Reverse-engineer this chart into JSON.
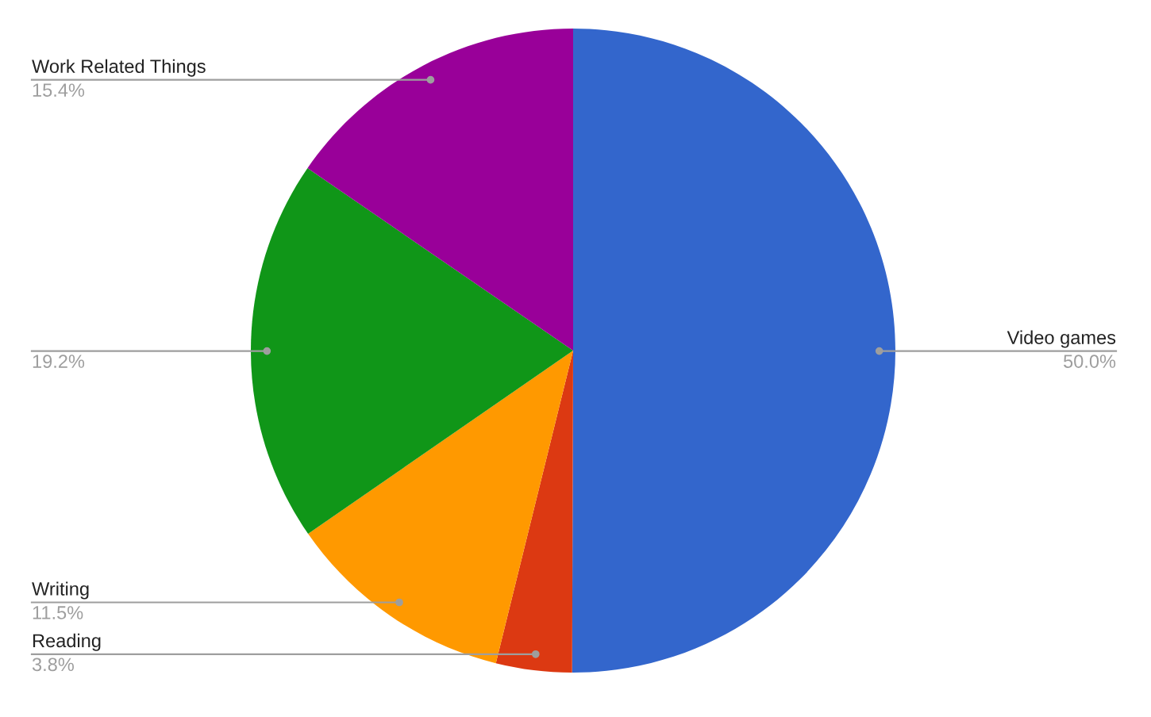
{
  "chart_data": {
    "type": "pie",
    "categories": [
      "Video games",
      "Reading",
      "Writing",
      null,
      "Work Related Things"
    ],
    "values": [
      50.0,
      3.8,
      11.5,
      19.2,
      15.4
    ],
    "colors": [
      "#3366cc",
      "#dc3912",
      "#ff9900",
      "#109618",
      "#990099"
    ],
    "value_labels": [
      "50.0%",
      "3.8%",
      "11.5%",
      "19.2%",
      "15.4%"
    ],
    "legend": false
  }
}
